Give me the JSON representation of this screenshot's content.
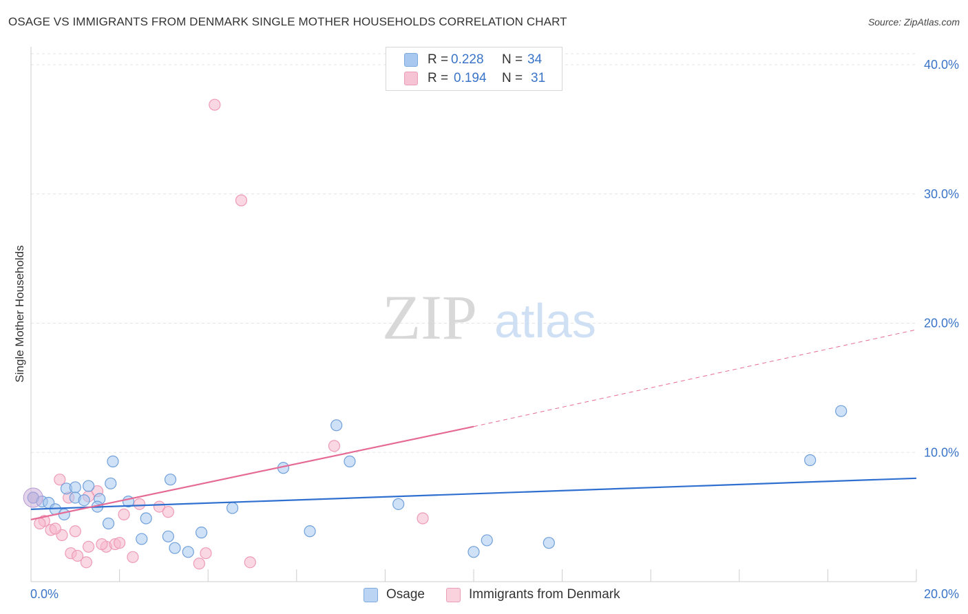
{
  "header": {
    "title": "OSAGE VS IMMIGRANTS FROM DENMARK SINGLE MOTHER HOUSEHOLDS CORRELATION CHART",
    "source": "Source: ZipAtlas.com"
  },
  "watermark": {
    "zip": "ZIP",
    "atlas": "atlas"
  },
  "legend": {
    "series1": {
      "r_label": "R =",
      "r_value": "0.228",
      "n_label": "N =",
      "n_value": "34",
      "color": "#a8c8f0"
    },
    "series2": {
      "r_label": "R =",
      "r_value": "0.194",
      "n_label": "N =",
      "n_value": "31",
      "color": "#f5b8cc"
    }
  },
  "bottom_legend": {
    "series1": "Osage",
    "series2": "Immigrants from Denmark"
  },
  "colors": {
    "blue_point": "#a8c8f0",
    "blue_line": "#2f6fcf",
    "pink_point": "#f5b8cc",
    "pink_line": "#e56a95",
    "tick_text": "#3a74c8"
  },
  "chart_data": {
    "type": "scatter",
    "title": "OSAGE VS IMMIGRANTS FROM DENMARK SINGLE MOTHER HOUSEHOLDS CORRELATION CHART",
    "xlabel": "",
    "ylabel": "Single Mother Households",
    "xlim": [
      0,
      20
    ],
    "ylim": [
      0,
      40
    ],
    "x_tick_labels": [
      "0.0%",
      "20.0%"
    ],
    "y_ticks": [
      10,
      20,
      30,
      40
    ],
    "y_tick_labels": [
      "10.0%",
      "20.0%",
      "30.0%",
      "40.0%"
    ],
    "grid": true,
    "series": [
      {
        "name": "Osage",
        "points": [
          [
            0.05,
            6.5
          ],
          [
            0.25,
            6.2
          ],
          [
            0.4,
            6.1
          ],
          [
            0.55,
            5.6
          ],
          [
            0.8,
            7.2
          ],
          [
            1.0,
            7.3
          ],
          [
            1.3,
            7.4
          ],
          [
            1.55,
            6.4
          ],
          [
            1.85,
            9.3
          ],
          [
            1.0,
            6.5
          ],
          [
            1.75,
            4.5
          ],
          [
            2.2,
            6.2
          ],
          [
            2.6,
            4.9
          ],
          [
            2.5,
            3.3
          ],
          [
            3.1,
            3.5
          ],
          [
            3.25,
            2.6
          ],
          [
            3.55,
            2.3
          ],
          [
            4.55,
            5.7
          ],
          [
            5.7,
            8.8
          ],
          [
            6.3,
            3.9
          ],
          [
            6.9,
            12.1
          ],
          [
            7.2,
            9.3
          ],
          [
            8.3,
            6.0
          ],
          [
            10.0,
            2.3
          ],
          [
            10.3,
            3.2
          ],
          [
            11.7,
            3.0
          ],
          [
            17.6,
            9.4
          ],
          [
            18.3,
            13.2
          ],
          [
            0.75,
            5.2
          ],
          [
            1.5,
            5.8
          ],
          [
            1.8,
            7.6
          ],
          [
            1.2,
            6.3
          ],
          [
            3.85,
            3.8
          ],
          [
            3.15,
            7.9
          ]
        ],
        "trend": {
          "x": [
            0,
            20
          ],
          "y": [
            5.6,
            8.0
          ]
        }
      },
      {
        "name": "Immigrants from Denmark",
        "points": [
          [
            0.05,
            6.5
          ],
          [
            0.3,
            4.7
          ],
          [
            0.45,
            4.0
          ],
          [
            0.7,
            3.6
          ],
          [
            0.65,
            7.9
          ],
          [
            1.0,
            3.9
          ],
          [
            1.3,
            2.7
          ],
          [
            1.5,
            7.0
          ],
          [
            1.7,
            2.7
          ],
          [
            1.9,
            2.9
          ],
          [
            2.1,
            5.2
          ],
          [
            2.3,
            1.9
          ],
          [
            2.45,
            6.0
          ],
          [
            2.9,
            5.8
          ],
          [
            3.1,
            5.4
          ],
          [
            3.8,
            1.4
          ],
          [
            3.95,
            2.2
          ],
          [
            4.15,
            36.9
          ],
          [
            4.75,
            29.5
          ],
          [
            4.95,
            1.5
          ],
          [
            6.85,
            10.5
          ],
          [
            8.85,
            4.9
          ],
          [
            0.2,
            4.5
          ],
          [
            0.55,
            4.1
          ],
          [
            0.9,
            2.2
          ],
          [
            1.05,
            2.0
          ],
          [
            1.25,
            1.5
          ],
          [
            1.6,
            2.9
          ],
          [
            2.0,
            3.0
          ],
          [
            0.85,
            6.5
          ],
          [
            1.3,
            6.6
          ]
        ],
        "trend": {
          "x": [
            0,
            10
          ],
          "y": [
            4.8,
            12.0
          ]
        },
        "trend_dashed_extension": {
          "x": [
            10,
            20
          ],
          "y": [
            12.0,
            19.5
          ]
        }
      }
    ]
  }
}
